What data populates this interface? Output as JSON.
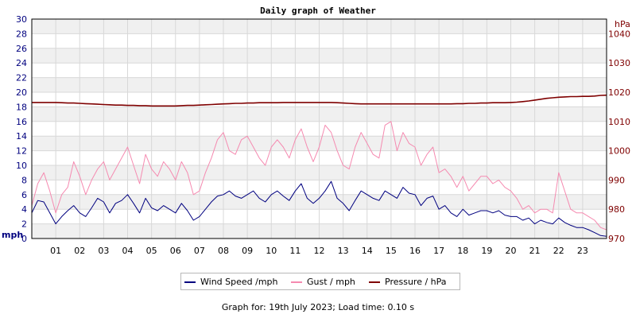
{
  "footer": {
    "label": "Graph for:",
    "date": "19th July 2023;",
    "load_label": "Load time:",
    "load_time": "0.10 s"
  },
  "colors": {
    "wind": "#00007f",
    "gust": "#f58ab0",
    "pressure": "#7f0000",
    "left_axis_text": "#00007f",
    "right_axis_text": "#7f0000",
    "band_shade": "#f0f0f0",
    "grid": "#d8d8d8"
  },
  "chart_data": {
    "type": "line",
    "title": "Daily graph of Weather",
    "x_label_unit": "hours",
    "x": [
      0,
      0.25,
      0.5,
      0.75,
      1,
      1.25,
      1.5,
      1.75,
      2,
      2.25,
      2.5,
      2.75,
      3,
      3.25,
      3.5,
      3.75,
      4,
      4.25,
      4.5,
      4.75,
      5,
      5.25,
      5.5,
      5.75,
      6,
      6.25,
      6.5,
      6.75,
      7,
      7.25,
      7.5,
      7.75,
      8,
      8.25,
      8.5,
      8.75,
      9,
      9.25,
      9.5,
      9.75,
      10,
      10.25,
      10.5,
      10.75,
      11,
      11.25,
      11.5,
      11.75,
      12,
      12.25,
      12.5,
      12.75,
      13,
      13.25,
      13.5,
      13.75,
      14,
      14.25,
      14.5,
      14.75,
      15,
      15.25,
      15.5,
      15.75,
      16,
      16.25,
      16.5,
      16.75,
      17,
      17.25,
      17.5,
      17.75,
      18,
      18.25,
      18.5,
      18.75,
      19,
      19.25,
      19.5,
      19.75,
      20,
      20.25,
      20.5,
      20.75,
      21,
      21.25,
      21.5,
      21.75,
      22,
      22.25,
      22.5,
      22.75,
      23,
      23.25,
      23.5,
      23.75,
      24
    ],
    "x_ticks": [
      "01",
      "02",
      "03",
      "04",
      "05",
      "06",
      "07",
      "08",
      "09",
      "10",
      "11",
      "12",
      "13",
      "14",
      "15",
      "16",
      "17",
      "18",
      "19",
      "20",
      "21",
      "22",
      "23"
    ],
    "y_left": {
      "label": "mph",
      "range": [
        0,
        30
      ],
      "ticks": [
        "0",
        "2",
        "4",
        "6",
        "8",
        "10",
        "12",
        "14",
        "16",
        "18",
        "20",
        "22",
        "24",
        "26",
        "28",
        "30"
      ]
    },
    "y_right": {
      "label": "hPa",
      "range": [
        970,
        1045
      ],
      "ticks": [
        "970",
        "980",
        "990",
        "1000",
        "1010",
        "1020",
        "1030",
        "1040"
      ]
    },
    "series": [
      {
        "name": "Wind Speed /mph",
        "axis": "left",
        "values": [
          3.5,
          5.2,
          5.0,
          3.5,
          2.0,
          3.0,
          3.8,
          4.5,
          3.5,
          3.0,
          4.2,
          5.5,
          5.0,
          3.5,
          4.8,
          5.2,
          6.0,
          4.8,
          3.5,
          5.5,
          4.2,
          3.8,
          4.5,
          4.0,
          3.5,
          4.8,
          3.8,
          2.5,
          3.0,
          4.0,
          5.0,
          5.8,
          6.0,
          6.5,
          5.8,
          5.5,
          6.0,
          6.5,
          5.5,
          5.0,
          6.0,
          6.5,
          5.8,
          5.2,
          6.5,
          7.5,
          5.5,
          4.8,
          5.5,
          6.5,
          7.8,
          5.5,
          4.8,
          3.8,
          5.2,
          6.5,
          6.0,
          5.5,
          5.2,
          6.5,
          6.0,
          5.5,
          7.0,
          6.2,
          6.0,
          4.5,
          5.5,
          5.8,
          4.0,
          4.5,
          3.5,
          3.0,
          4.0,
          3.2,
          3.5,
          3.8,
          3.8,
          3.5,
          3.8,
          3.2,
          3.0,
          3.0,
          2.5,
          2.8,
          2.0,
          2.5,
          2.2,
          2.0,
          2.8,
          2.2,
          1.8,
          1.5,
          1.5,
          1.2,
          0.8,
          0.4,
          0.3
        ]
      },
      {
        "name": "Gust / mph",
        "axis": "left",
        "values": [
          4.5,
          7.5,
          9.0,
          6.5,
          3.5,
          6.0,
          7.0,
          10.5,
          8.5,
          6.0,
          8.0,
          9.5,
          10.5,
          8.0,
          9.5,
          11.0,
          12.5,
          10.0,
          7.5,
          11.5,
          9.5,
          8.5,
          10.5,
          9.5,
          8.0,
          10.5,
          9.0,
          6.0,
          6.5,
          9.0,
          11.0,
          13.5,
          14.5,
          12.0,
          11.5,
          13.5,
          14.0,
          12.5,
          11.0,
          10.0,
          12.5,
          13.5,
          12.5,
          11.0,
          13.5,
          15.0,
          12.5,
          10.5,
          12.5,
          15.5,
          14.5,
          12.0,
          10.0,
          9.5,
          12.5,
          14.5,
          13.0,
          11.5,
          11.0,
          15.5,
          16.0,
          12.0,
          14.5,
          13.0,
          12.5,
          10.0,
          11.5,
          12.5,
          9.0,
          9.5,
          8.5,
          7.0,
          8.5,
          6.5,
          7.5,
          8.5,
          8.5,
          7.5,
          8.0,
          7.0,
          6.5,
          5.5,
          4.0,
          4.5,
          3.5,
          4.0,
          4.0,
          3.5,
          9.0,
          6.5,
          4.0,
          3.5,
          3.5,
          3.0,
          2.5,
          1.5,
          1.2
        ]
      },
      {
        "name": "Pressure / hPa",
        "axis": "right",
        "values": [
          1016.5,
          1016.5,
          1016.5,
          1016.5,
          1016.5,
          1016.4,
          1016.3,
          1016.3,
          1016.2,
          1016.1,
          1016.0,
          1015.9,
          1015.8,
          1015.7,
          1015.6,
          1015.6,
          1015.5,
          1015.5,
          1015.4,
          1015.4,
          1015.3,
          1015.3,
          1015.3,
          1015.3,
          1015.3,
          1015.4,
          1015.5,
          1015.5,
          1015.6,
          1015.7,
          1015.8,
          1015.9,
          1016.0,
          1016.1,
          1016.2,
          1016.2,
          1016.3,
          1016.3,
          1016.4,
          1016.4,
          1016.4,
          1016.4,
          1016.5,
          1016.5,
          1016.5,
          1016.5,
          1016.5,
          1016.5,
          1016.5,
          1016.5,
          1016.5,
          1016.4,
          1016.3,
          1016.2,
          1016.1,
          1016.0,
          1016.0,
          1016.0,
          1016.0,
          1016.0,
          1016.0,
          1016.0,
          1016.0,
          1016.0,
          1016.0,
          1016.0,
          1016.0,
          1016.0,
          1016.0,
          1016.0,
          1016.0,
          1016.1,
          1016.1,
          1016.2,
          1016.2,
          1016.3,
          1016.3,
          1016.4,
          1016.4,
          1016.4,
          1016.5,
          1016.6,
          1016.8,
          1017.0,
          1017.3,
          1017.6,
          1017.9,
          1018.1,
          1018.3,
          1018.4,
          1018.5,
          1018.5,
          1018.6,
          1018.6,
          1018.7,
          1018.9,
          1019.0
        ]
      }
    ],
    "grid": true,
    "legend_position": "bottom-center"
  }
}
